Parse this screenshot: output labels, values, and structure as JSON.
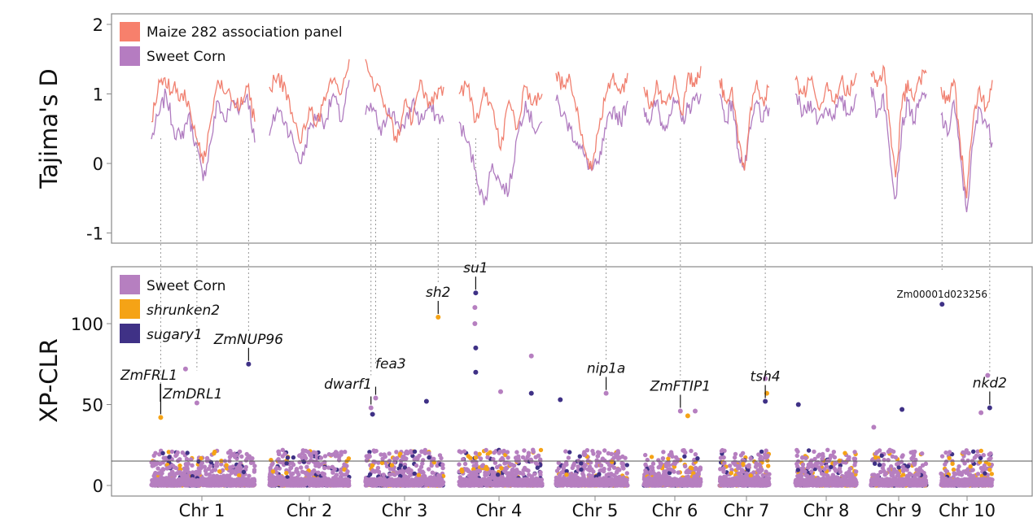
{
  "chart_data": [
    {
      "type": "line",
      "ylabel": "Tajima's D",
      "ylim": [
        -1.15,
        2.05
      ],
      "yticks": [
        "2",
        "1",
        "0",
        "-1"
      ],
      "ytick_values": [
        2,
        1,
        0,
        -1
      ],
      "legend_position": "top-left",
      "colors": {
        "maize": "#f08070",
        "sweet": "#b07cc0"
      },
      "series": [
        {
          "name": "Maize 282 association panel",
          "key": "maize",
          "by_chr": [
            [
              0.6,
              1.2,
              1.1,
              1.1,
              1.0,
              0.9,
              0.4,
              0.0,
              0.6,
              1.2,
              1.0,
              0.9,
              0.8,
              1.1,
              0.6
            ],
            [
              1.1,
              1.25,
              1.1,
              0.6,
              0.3,
              0.8,
              0.6,
              0.9,
              1.2,
              1.0,
              1.5
            ],
            [
              1.5,
              1.1,
              1.0,
              0.7,
              0.3,
              0.9,
              0.6,
              1.2,
              0.8,
              1.0,
              1.1
            ],
            [
              1.0,
              1.1,
              0.6,
              1.1,
              0.8,
              0.2,
              0.9,
              0.5,
              1.1,
              0.9,
              1.0
            ],
            [
              1.3,
              1.1,
              1.2,
              0.8,
              0.2,
              -0.1,
              0.5,
              1.0,
              1.3,
              1.0,
              1.3
            ],
            [
              1.1,
              0.8,
              1.2,
              0.9,
              1.0,
              1.2,
              0.7,
              1.3,
              1.1,
              1.4
            ],
            [
              1.2,
              0.9,
              1.1,
              0.3,
              -0.1,
              0.8,
              1.2,
              0.9,
              1.1
            ],
            [
              1.2,
              1.0,
              1.2,
              0.8,
              1.1,
              0.9,
              1.2,
              1.0,
              1.3
            ],
            [
              1.3,
              1.1,
              1.4,
              0.6,
              -0.2,
              0.8,
              1.2,
              0.9,
              1.2,
              1.3
            ],
            [
              1.1,
              0.9,
              1.2,
              0.3,
              -0.5,
              0.6,
              1.1,
              0.8,
              1.2
            ]
          ]
        },
        {
          "name": "Sweet Corn",
          "key": "sweet",
          "by_chr": [
            [
              0.35,
              0.7,
              1.0,
              0.5,
              0.35,
              0.7,
              0.3,
              -0.25,
              0.3,
              0.9,
              0.6,
              0.9,
              0.8,
              1.0,
              0.3
            ],
            [
              0.4,
              0.8,
              0.6,
              0.3,
              0.0,
              0.5,
              0.7,
              0.6,
              1.0,
              0.6,
              1.2
            ],
            [
              0.7,
              0.8,
              0.4,
              0.8,
              0.6,
              0.5,
              0.9,
              0.6,
              0.8,
              0.7,
              0.6
            ],
            [
              0.6,
              0.3,
              -0.1,
              -0.6,
              0.0,
              -0.3,
              -0.4,
              0.4,
              0.9,
              0.5,
              0.6
            ],
            [
              0.9,
              0.7,
              0.5,
              0.3,
              0.1,
              -0.1,
              0.0,
              0.5,
              0.8,
              0.6,
              0.9
            ],
            [
              0.8,
              0.6,
              0.9,
              0.5,
              0.7,
              0.9,
              0.6,
              0.8,
              0.9,
              1.0
            ],
            [
              1.0,
              0.6,
              0.9,
              0.2,
              -0.1,
              0.5,
              0.9,
              0.6,
              0.8
            ],
            [
              1.0,
              0.7,
              0.9,
              0.6,
              0.8,
              0.7,
              0.9,
              0.7,
              1.0
            ],
            [
              1.1,
              0.7,
              1.0,
              0.2,
              -0.5,
              0.5,
              0.9,
              0.6,
              0.9,
              1.0
            ],
            [
              0.7,
              0.4,
              0.9,
              0.1,
              -0.7,
              0.3,
              0.8,
              0.6,
              0.3
            ]
          ]
        }
      ]
    },
    {
      "type": "scatter",
      "ylabel": "XP-CLR",
      "ylim": [
        -7,
        135
      ],
      "yticks": [
        "0",
        "50",
        "100"
      ],
      "ytick_values": [
        0,
        50,
        100
      ],
      "threshold": 15,
      "legend_position": "top-left",
      "categories": [
        "Chr 1",
        "Chr 2",
        "Chr 3",
        "Chr 4",
        "Chr 5",
        "Chr 6",
        "Chr 7",
        "Chr 8",
        "Chr 9",
        "Chr 10"
      ],
      "series": [
        {
          "name": "Sweet Corn",
          "key": "sweet",
          "color": "#b67fc0"
        },
        {
          "name": "shrunken2",
          "key": "sh2",
          "color": "#f5a316"
        },
        {
          "name": "sugary1",
          "key": "su1",
          "color": "#3f3186"
        }
      ],
      "notable_points": [
        {
          "chr": 1,
          "pos": 0.09,
          "value": 42,
          "s": "sh2"
        },
        {
          "chr": 1,
          "pos": 0.33,
          "value": 72,
          "s": "sweet"
        },
        {
          "chr": 1,
          "pos": 0.44,
          "value": 51,
          "s": "sweet"
        },
        {
          "chr": 1,
          "pos": 0.94,
          "value": 75,
          "s": "su1"
        },
        {
          "chr": 3,
          "pos": 0.07,
          "value": 48,
          "s": "sweet"
        },
        {
          "chr": 3,
          "pos": 0.13,
          "value": 54,
          "s": "sweet"
        },
        {
          "chr": 3,
          "pos": 0.09,
          "value": 44,
          "s": "su1"
        },
        {
          "chr": 3,
          "pos": 0.93,
          "value": 104,
          "s": "sh2"
        },
        {
          "chr": 3,
          "pos": 0.78,
          "value": 52,
          "s": "su1"
        },
        {
          "chr": 4,
          "pos": 0.2,
          "value": 119,
          "s": "su1"
        },
        {
          "chr": 4,
          "pos": 0.19,
          "value": 110,
          "s": "sweet"
        },
        {
          "chr": 4,
          "pos": 0.19,
          "value": 100,
          "s": "sweet"
        },
        {
          "chr": 4,
          "pos": 0.2,
          "value": 85,
          "s": "su1"
        },
        {
          "chr": 4,
          "pos": 0.2,
          "value": 70,
          "s": "su1"
        },
        {
          "chr": 4,
          "pos": 0.87,
          "value": 80,
          "s": "sweet"
        },
        {
          "chr": 4,
          "pos": 0.87,
          "value": 57,
          "s": "su1"
        },
        {
          "chr": 4,
          "pos": 0.5,
          "value": 58,
          "s": "sweet"
        },
        {
          "chr": 5,
          "pos": 0.06,
          "value": 53,
          "s": "su1"
        },
        {
          "chr": 5,
          "pos": 0.7,
          "value": 57,
          "s": "sweet"
        },
        {
          "chr": 6,
          "pos": 0.64,
          "value": 46,
          "s": "sweet"
        },
        {
          "chr": 6,
          "pos": 0.77,
          "value": 43,
          "s": "sh2"
        },
        {
          "chr": 6,
          "pos": 0.9,
          "value": 46,
          "s": "sweet"
        },
        {
          "chr": 7,
          "pos": 0.92,
          "value": 66,
          "s": "sweet"
        },
        {
          "chr": 7,
          "pos": 0.95,
          "value": 57,
          "s": "sh2"
        },
        {
          "chr": 7,
          "pos": 0.92,
          "value": 52,
          "s": "su1"
        },
        {
          "chr": 8,
          "pos": 0.05,
          "value": 50,
          "s": "su1"
        },
        {
          "chr": 9,
          "pos": 0.05,
          "value": 36,
          "s": "sweet"
        },
        {
          "chr": 9,
          "pos": 0.56,
          "value": 47,
          "s": "su1"
        },
        {
          "chr": 10,
          "pos": 0.02,
          "value": 112,
          "s": "su1"
        },
        {
          "chr": 10,
          "pos": 0.91,
          "value": 68,
          "s": "sweet"
        },
        {
          "chr": 10,
          "pos": 0.95,
          "value": 48,
          "s": "su1"
        },
        {
          "chr": 10,
          "pos": 0.78,
          "value": 45,
          "s": "sweet"
        }
      ],
      "annotations": [
        {
          "label": "ZmFRL1",
          "chr": 1,
          "pos": 0.09,
          "value": 42,
          "style": "italic"
        },
        {
          "label": "ZmDRL1",
          "chr": 1,
          "pos": 0.44,
          "value": 51,
          "style": "italic"
        },
        {
          "label": "ZmNUP96",
          "chr": 1,
          "pos": 0.94,
          "value": 75,
          "style": "italic"
        },
        {
          "label": "dwarf1",
          "chr": 3,
          "pos": 0.07,
          "value": 48,
          "style": "italic"
        },
        {
          "label": "fea3",
          "chr": 3,
          "pos": 0.13,
          "value": 54,
          "style": "italic"
        },
        {
          "label": "sh2",
          "chr": 3,
          "pos": 0.93,
          "value": 104,
          "style": "italic"
        },
        {
          "label": "su1",
          "chr": 4,
          "pos": 0.2,
          "value": 119,
          "style": "italic"
        },
        {
          "label": "nip1a",
          "chr": 5,
          "pos": 0.7,
          "value": 57,
          "style": "italic"
        },
        {
          "label": "ZmFTIP1",
          "chr": 6,
          "pos": 0.64,
          "value": 46,
          "style": "italic"
        },
        {
          "label": "tsh4",
          "chr": 7,
          "pos": 0.92,
          "value": 52,
          "style": "italic"
        },
        {
          "label": "Zm00001d023256",
          "chr": 10,
          "pos": 0.02,
          "value": 112,
          "style": "small"
        },
        {
          "label": "nkd2",
          "chr": 10,
          "pos": 0.95,
          "value": 48,
          "style": "italic"
        }
      ]
    }
  ]
}
